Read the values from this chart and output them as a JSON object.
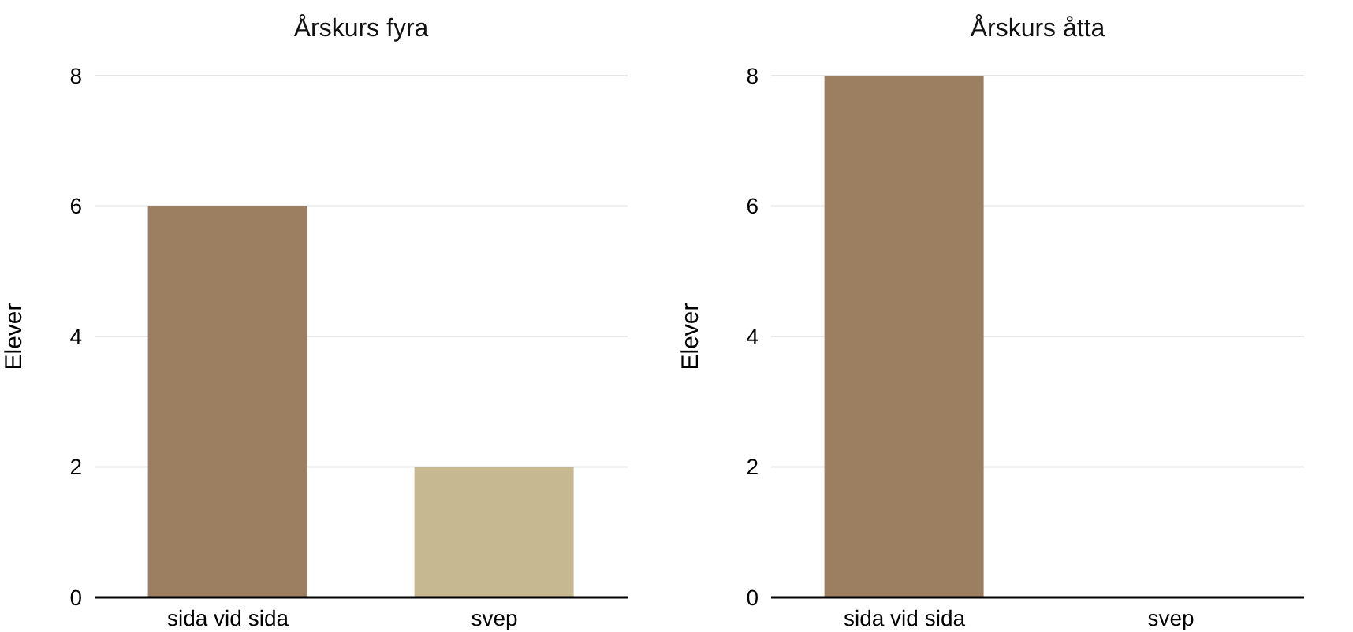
{
  "chart_data": [
    {
      "type": "bar",
      "title": "Årskurs fyra",
      "ylabel": "Elever",
      "categories": [
        "sida vid sida",
        "svep"
      ],
      "values": [
        6,
        2
      ],
      "colors": [
        "#9c7f61",
        "#c6b890"
      ],
      "ylim": [
        0,
        8
      ],
      "yticks": [
        0,
        2,
        4,
        6,
        8
      ],
      "grid": "y",
      "legend": false
    },
    {
      "type": "bar",
      "title": "Årskurs åtta",
      "ylabel": "Elever",
      "categories": [
        "sida vid sida",
        "svep"
      ],
      "values": [
        8,
        0
      ],
      "colors": [
        "#9c7f61",
        "#c6b890"
      ],
      "ylim": [
        0,
        8
      ],
      "yticks": [
        0,
        2,
        4,
        6,
        8
      ],
      "grid": "y",
      "legend": false
    }
  ]
}
